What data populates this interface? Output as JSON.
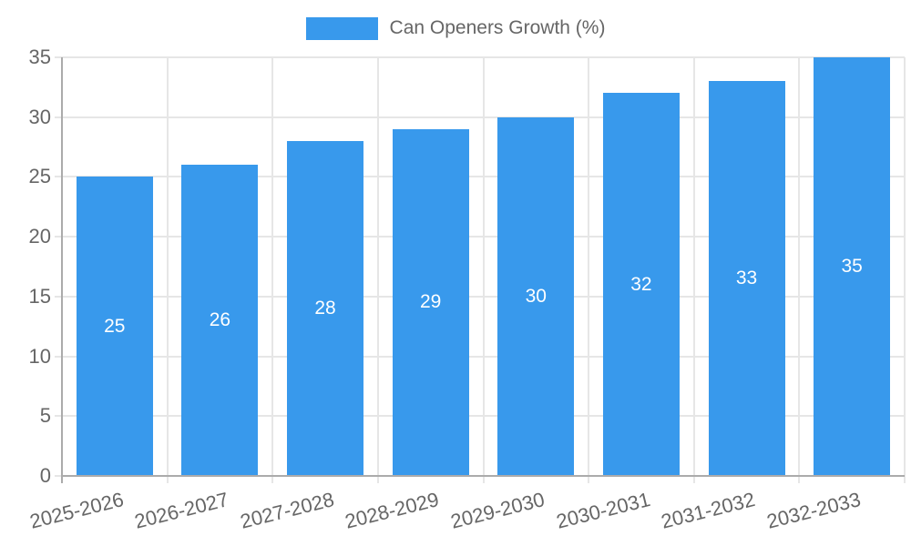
{
  "legend": {
    "label": "Can Openers Growth (%)"
  },
  "chart_data": {
    "type": "bar",
    "title": "Can Openers Growth (%)",
    "series_name": "Can Openers Growth (%)",
    "categories": [
      "2025-2026",
      "2026-2027",
      "2027-2028",
      "2028-2029",
      "2029-2030",
      "2030-2031",
      "2031-2032",
      "2032-2033"
    ],
    "values": [
      25,
      26,
      28,
      29,
      30,
      32,
      33,
      35
    ],
    "xlabel": "",
    "ylabel": "",
    "ylim": [
      0,
      35
    ],
    "yticks": [
      0,
      5,
      10,
      15,
      20,
      25,
      30,
      35
    ],
    "grid": true,
    "legend_position": "top",
    "value_labels": "inside-center",
    "bar_color": "#3899EC",
    "value_label_color": "#FFFFFF",
    "tick_text_color": "#666666",
    "gridline_color": "#E6E6E6",
    "axis_line_color": "#ABABAB",
    "background_color": "#FFFFFF",
    "x_label_rotation_deg": -14
  }
}
